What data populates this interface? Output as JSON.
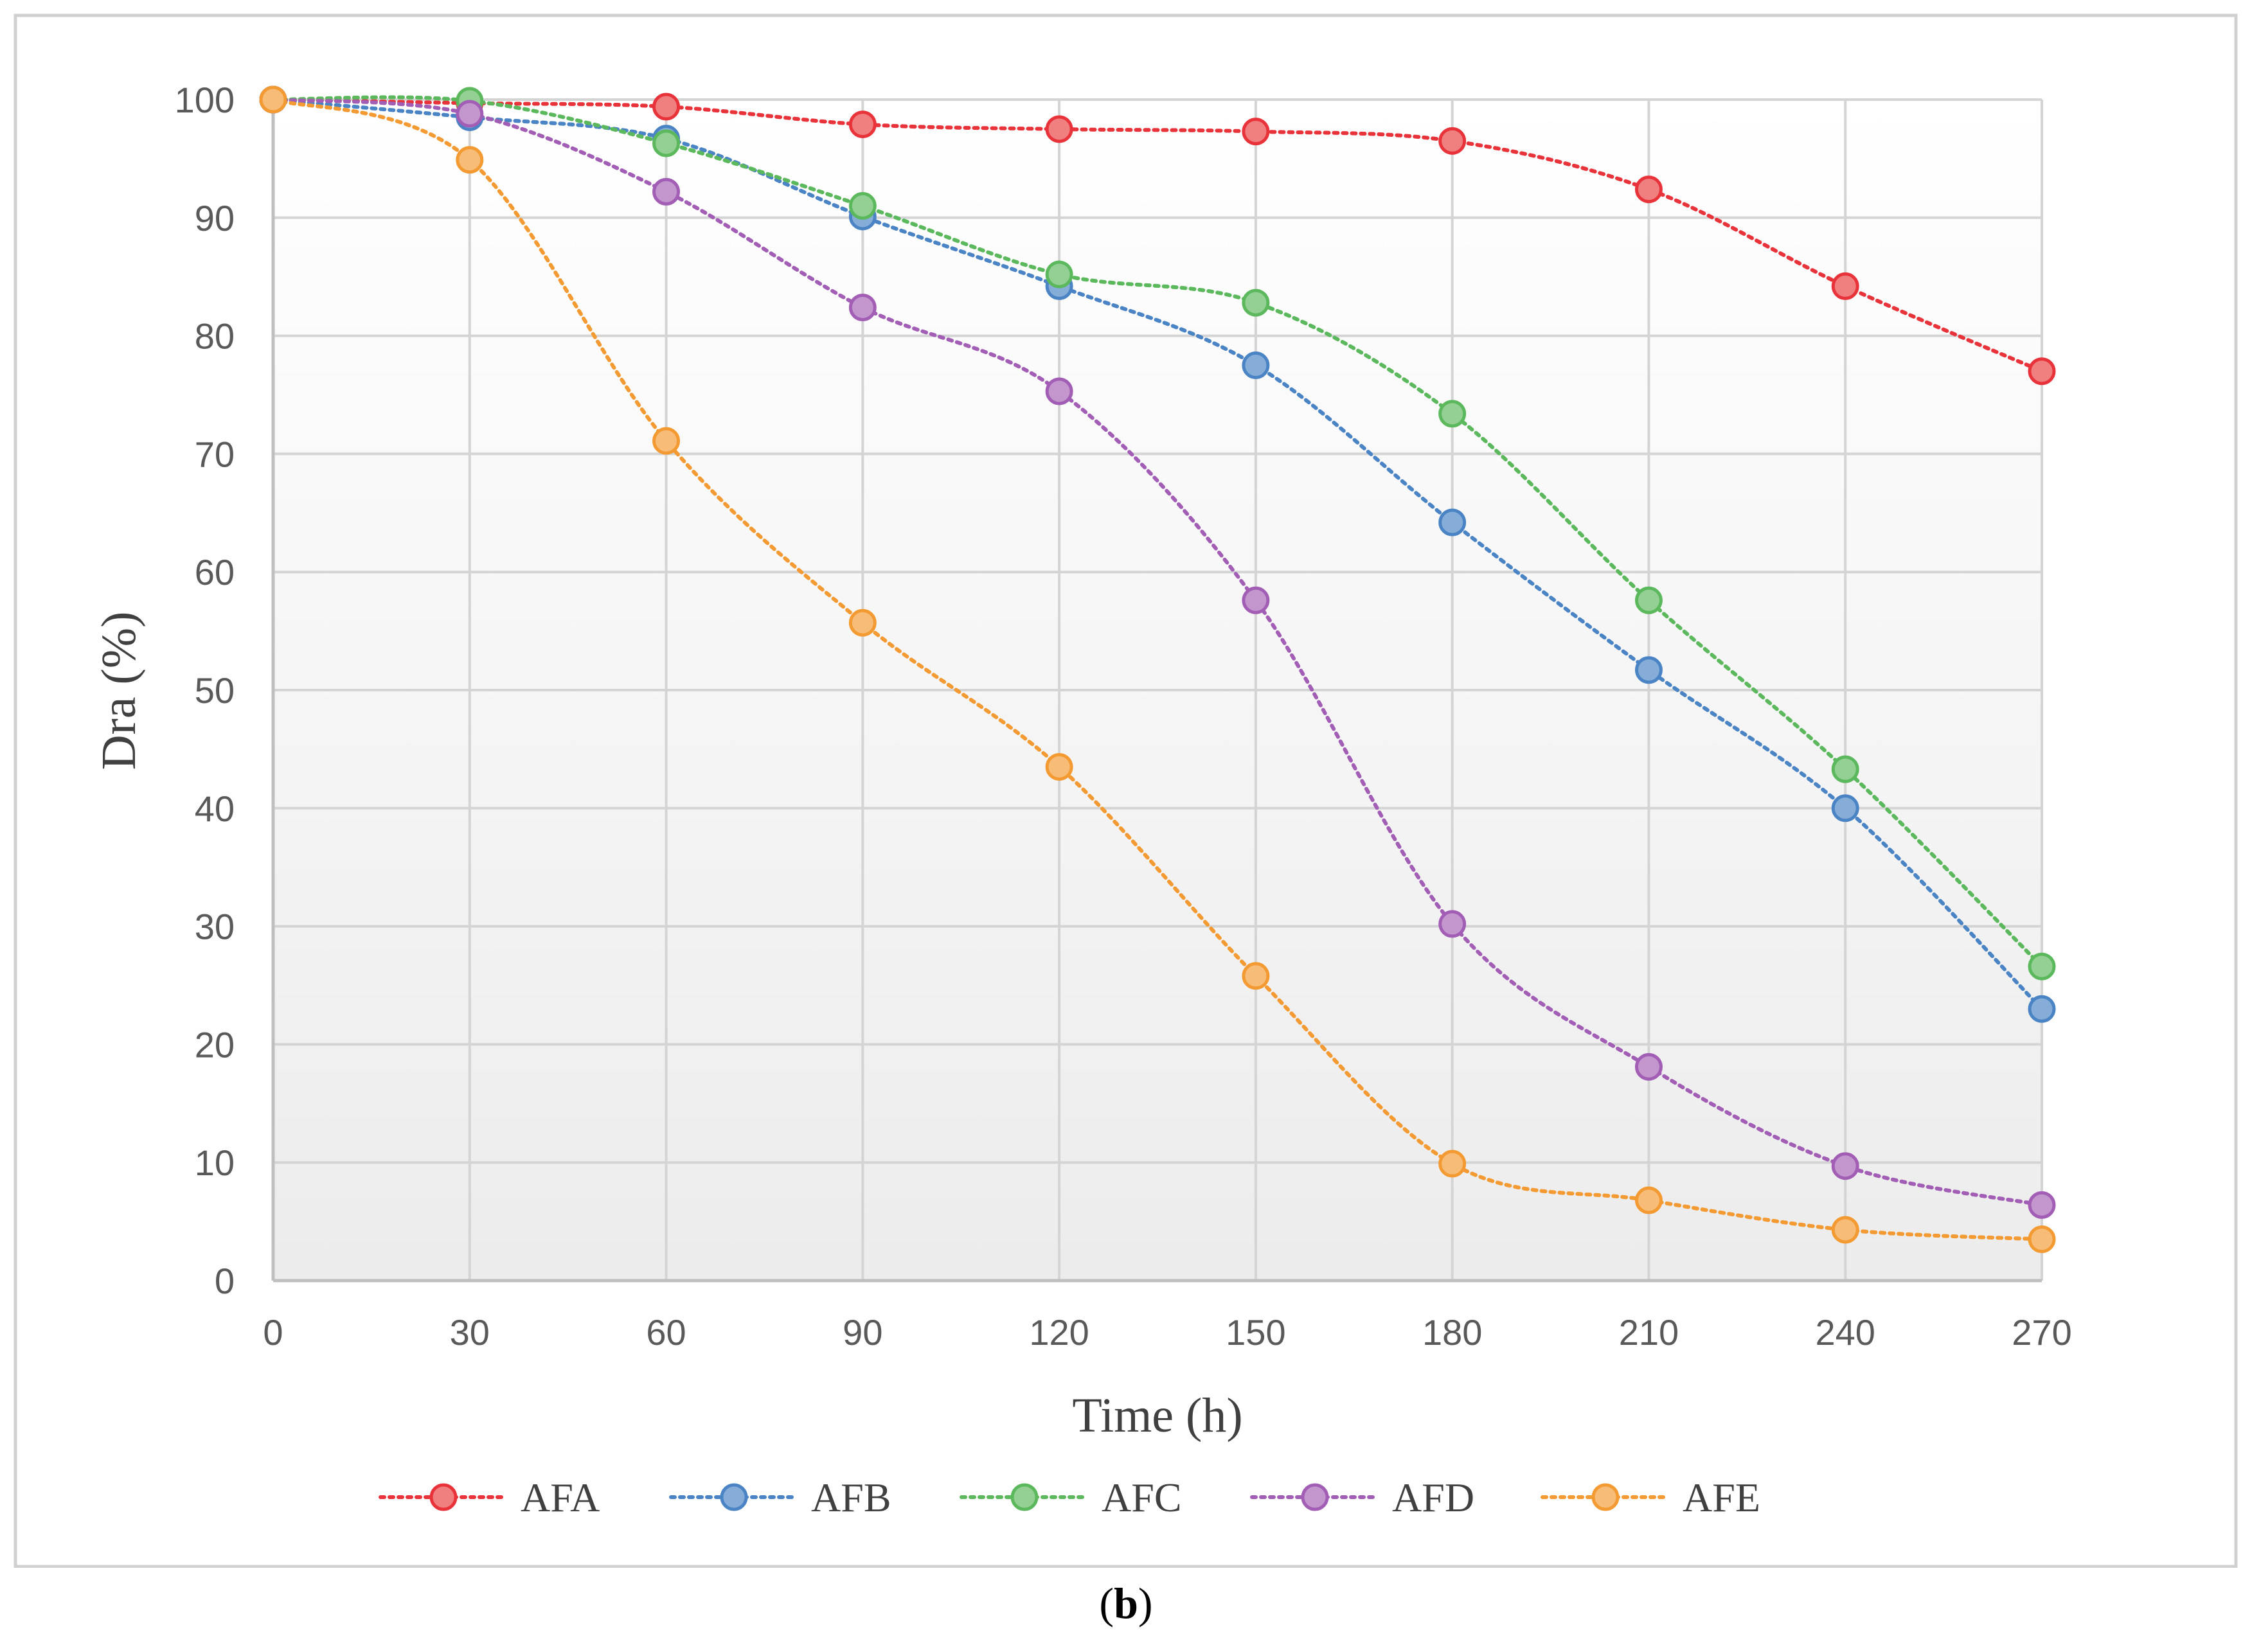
{
  "caption": {
    "open": "(",
    "letter": "b",
    "close": ")"
  },
  "chart_data": {
    "type": "line",
    "title": "",
    "xlabel": "Time (h)",
    "ylabel": "Dra (%)",
    "x": [
      0,
      30,
      60,
      90,
      120,
      150,
      180,
      210,
      240,
      270
    ],
    "xlim": [
      0,
      270
    ],
    "ylim": [
      0,
      100
    ],
    "xticks": [
      0,
      30,
      60,
      90,
      120,
      150,
      180,
      210,
      240,
      270
    ],
    "yticks": [
      0,
      10,
      20,
      30,
      40,
      50,
      60,
      70,
      80,
      90,
      100
    ],
    "grid": true,
    "legend_position": "bottom",
    "series": [
      {
        "name": "AFA",
        "color": "#e8333b",
        "fill": "#f08080",
        "values": [
          100,
          99.7,
          99.4,
          97.9,
          97.5,
          97.3,
          96.5,
          92.4,
          84.2,
          77
        ]
      },
      {
        "name": "AFB",
        "color": "#4a84c4",
        "fill": "#86acd8",
        "values": [
          100,
          98.5,
          96.7,
          90.1,
          84.2,
          77.5,
          64.2,
          51.7,
          40,
          23
        ]
      },
      {
        "name": "AFC",
        "color": "#5cb85c",
        "fill": "#94d094",
        "values": [
          100,
          99.9,
          96.3,
          91,
          85.2,
          82.8,
          73.4,
          57.6,
          43.3,
          26.6
        ]
      },
      {
        "name": "AFD",
        "color": "#a25db5",
        "fill": "#c396ce",
        "values": [
          100,
          98.8,
          92.2,
          82.4,
          75.3,
          57.6,
          30.2,
          18.1,
          9.7,
          6.4
        ]
      },
      {
        "name": "AFE",
        "color": "#f39a32",
        "fill": "#f7bd78",
        "values": [
          100,
          94.9,
          71.1,
          55.7,
          43.5,
          25.8,
          9.9,
          6.8,
          4.3,
          3.5
        ]
      }
    ]
  }
}
